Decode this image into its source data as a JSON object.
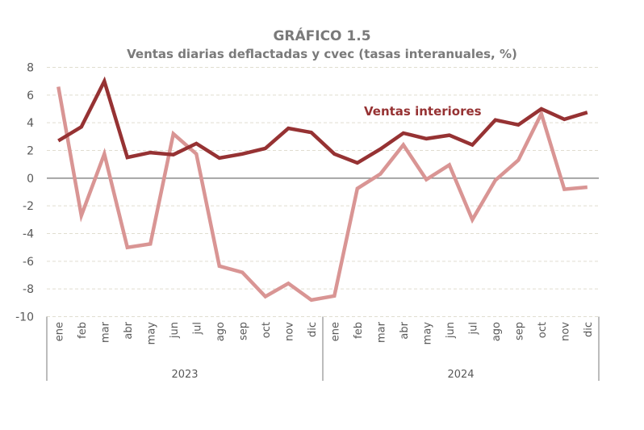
{
  "chart_data": {
    "type": "line",
    "title": "GRÁFICO 1.5",
    "subtitle": "Ventas diarias deflactadas y cvec (tasas interanuales, %)",
    "xlabel": "",
    "ylabel": "",
    "ylim": [
      -10,
      8
    ],
    "yticks": [
      8,
      6,
      4,
      2,
      0,
      -2,
      -4,
      -6,
      -8,
      -10
    ],
    "grid": true,
    "categories": [
      "ene",
      "feb",
      "mar",
      "abr",
      "may",
      "jun",
      "jul",
      "ago",
      "sep",
      "oct",
      "nov",
      "dic",
      "ene",
      "feb",
      "mar",
      "abr",
      "may",
      "jun",
      "jul",
      "ago",
      "sep",
      "oct",
      "nov",
      "dic"
    ],
    "groups": [
      {
        "label": "2023",
        "count": 12
      },
      {
        "label": "2024",
        "count": 12
      }
    ],
    "series": [
      {
        "name": "Ventas interiores",
        "color": "#963233",
        "values": [
          2.7,
          3.7,
          7.0,
          1.5,
          1.85,
          1.7,
          2.5,
          1.45,
          1.75,
          2.15,
          3.6,
          3.3,
          1.75,
          1.1,
          2.1,
          3.25,
          2.85,
          3.1,
          2.4,
          4.2,
          3.85,
          5.0,
          4.25,
          4.75
        ]
      },
      {
        "color": "#d99594",
        "values": [
          6.6,
          -2.7,
          1.75,
          -5.0,
          -4.75,
          3.2,
          1.75,
          -6.35,
          -6.8,
          -8.55,
          -7.6,
          -8.8,
          -8.5,
          -0.75,
          0.3,
          2.4,
          -0.1,
          0.95,
          -3.0,
          -0.15,
          1.3,
          4.65,
          -0.8,
          -0.65
        ]
      }
    ],
    "annotations": [
      {
        "text": "Ventas interiores",
        "series": 0
      }
    ]
  }
}
